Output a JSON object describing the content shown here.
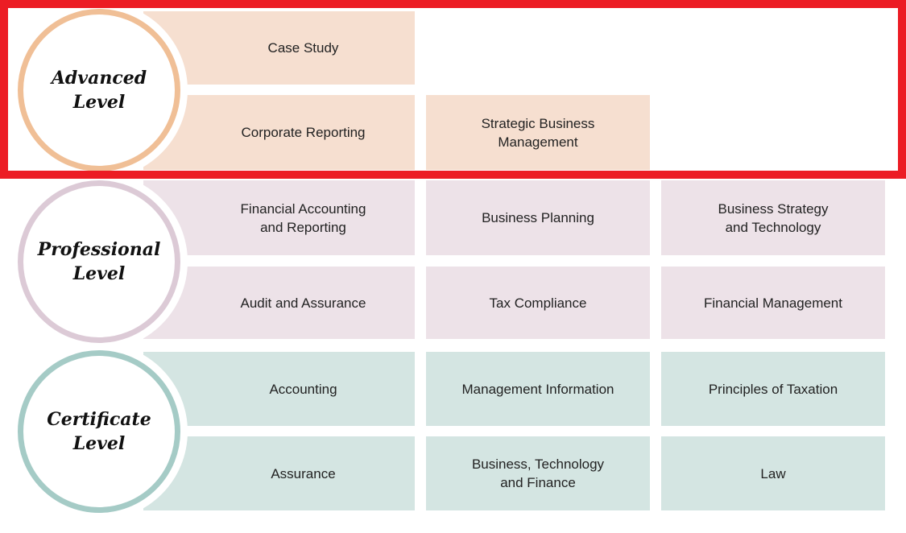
{
  "colors": {
    "advanced_fill": "#f6dfd0",
    "advanced_ring": "#f0bf96",
    "professional_fill": "#ede2e8",
    "professional_ring": "#dccad6",
    "certificate_fill": "#d4e5e2",
    "certificate_ring": "#a5cbc6",
    "highlight": "#ec1c24"
  },
  "levels": [
    {
      "title": "Advanced\nLevel",
      "rows": [
        [
          "Case Study"
        ],
        [
          "Corporate Reporting",
          "Strategic Business\nManagement"
        ]
      ]
    },
    {
      "title": "Professional\nLevel",
      "rows": [
        [
          "Financial Accounting\nand Reporting",
          "Business Planning",
          "Business Strategy\nand Technology"
        ],
        [
          "Audit and Assurance",
          "Tax Compliance",
          "Financial Management"
        ]
      ]
    },
    {
      "title": "Certificate\nLevel",
      "rows": [
        [
          "Accounting",
          "Management Information",
          "Principles of Taxation"
        ],
        [
          "Assurance",
          "Business, Technology\nand Finance",
          "Law"
        ]
      ]
    }
  ]
}
